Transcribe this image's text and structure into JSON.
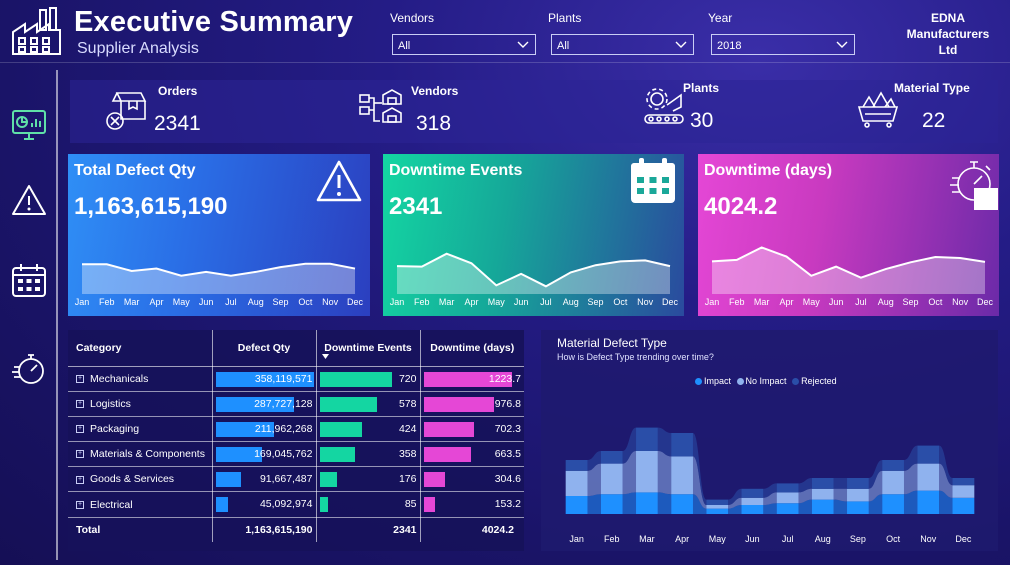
{
  "header": {
    "title": "Executive Summary",
    "subtitle": "Supplier Analysis",
    "company": "EDNA Manufacturers Ltd"
  },
  "filters": [
    {
      "label": "Vendors",
      "value": "All"
    },
    {
      "label": "Plants",
      "value": "All"
    },
    {
      "label": "Year",
      "value": "2018"
    }
  ],
  "kpis": [
    {
      "label": "Orders",
      "value": "2341",
      "icon": "orders-box-icon"
    },
    {
      "label": "Vendors",
      "value": "318",
      "icon": "vendors-icon"
    },
    {
      "label": "Plants",
      "value": "30",
      "icon": "plant-gear-icon"
    },
    {
      "label": "Material Type",
      "value": "22",
      "icon": "material-cart-icon"
    }
  ],
  "cards": [
    {
      "title": "Total Defect Qty",
      "value": "1,163,615,190",
      "icon": "warning-icon",
      "color": "#2f8ff6",
      "trend": [
        62,
        62,
        48,
        53,
        38,
        46,
        38,
        46,
        56,
        63,
        63,
        53
      ]
    },
    {
      "title": "Downtime Events",
      "value": "2341",
      "icon": "calendar-icon",
      "color": "#14d6a2",
      "trend": [
        58,
        57,
        84,
        64,
        18,
        42,
        16,
        45,
        60,
        68,
        70,
        58
      ]
    },
    {
      "title": "Downtime (days)",
      "value": "4024.2",
      "icon": "stopwatch-icon",
      "color": "#e547d6",
      "trend": [
        68,
        71,
        97,
        78,
        38,
        57,
        34,
        52,
        66,
        77,
        75,
        67
      ]
    }
  ],
  "months": [
    "Jan",
    "Feb",
    "Mar",
    "Apr",
    "May",
    "Jun",
    "Jul",
    "Aug",
    "Sep",
    "Oct",
    "Nov",
    "Dec"
  ],
  "table": {
    "headers": [
      "Category",
      "Defect Qty",
      "Downtime Events",
      "Downtime (days)"
    ],
    "rows": [
      {
        "category": "Mechanicals",
        "defect": "358,119,571",
        "events": "720",
        "days": "1223.7",
        "d": 358119571,
        "e": 720,
        "dd": 1223.7
      },
      {
        "category": "Logistics",
        "defect": "287,727,128",
        "events": "578",
        "days": "976.8",
        "d": 287727128,
        "e": 578,
        "dd": 976.8
      },
      {
        "category": "Packaging",
        "defect": "211,962,268",
        "events": "424",
        "days": "702.3",
        "d": 211962268,
        "e": 424,
        "dd": 702.3
      },
      {
        "category": "Materials & Components",
        "defect": "169,045,762",
        "events": "358",
        "days": "663.5",
        "d": 169045762,
        "e": 358,
        "dd": 663.5
      },
      {
        "category": "Goods & Services",
        "defect": "91,667,487",
        "events": "176",
        "days": "304.6",
        "d": 91667487,
        "e": 176,
        "dd": 304.6
      },
      {
        "category": "Electrical",
        "defect": "45,092,974",
        "events": "85",
        "days": "153.2",
        "d": 45092974,
        "e": 85,
        "dd": 153.2
      }
    ],
    "total": {
      "label": "Total",
      "defect": "1,163,615,190",
      "events": "2341",
      "days": "4024.2"
    },
    "bar_colors": {
      "defect": "#1e90ff",
      "events": "#14d6a2",
      "days": "#e547d6"
    }
  },
  "material_defect": {
    "title": "Material Defect Type",
    "subtitle": "How is Defect Type trending over time?",
    "legend": [
      {
        "label": "Impact",
        "color": "#1e90ff"
      },
      {
        "label": "No Impact",
        "color": "#8fb2ee"
      },
      {
        "label": "Rejected",
        "color": "#2a4ea8"
      }
    ]
  },
  "chart_data": {
    "type": "area",
    "title": "Material Defect Type",
    "categories": [
      "Jan",
      "Feb",
      "Mar",
      "Apr",
      "May",
      "Jun",
      "Jul",
      "Aug",
      "Sep",
      "Oct",
      "Nov",
      "Dec"
    ],
    "series": [
      {
        "name": "Impact",
        "values": [
          20,
          22,
          24,
          22,
          6,
          10,
          12,
          16,
          14,
          22,
          26,
          18
        ]
      },
      {
        "name": "No Impact",
        "values": [
          28,
          34,
          46,
          42,
          4,
          8,
          12,
          12,
          14,
          26,
          30,
          14
        ]
      },
      {
        "name": "Rejected",
        "values": [
          12,
          14,
          26,
          26,
          6,
          10,
          10,
          12,
          12,
          12,
          20,
          8
        ]
      }
    ]
  }
}
